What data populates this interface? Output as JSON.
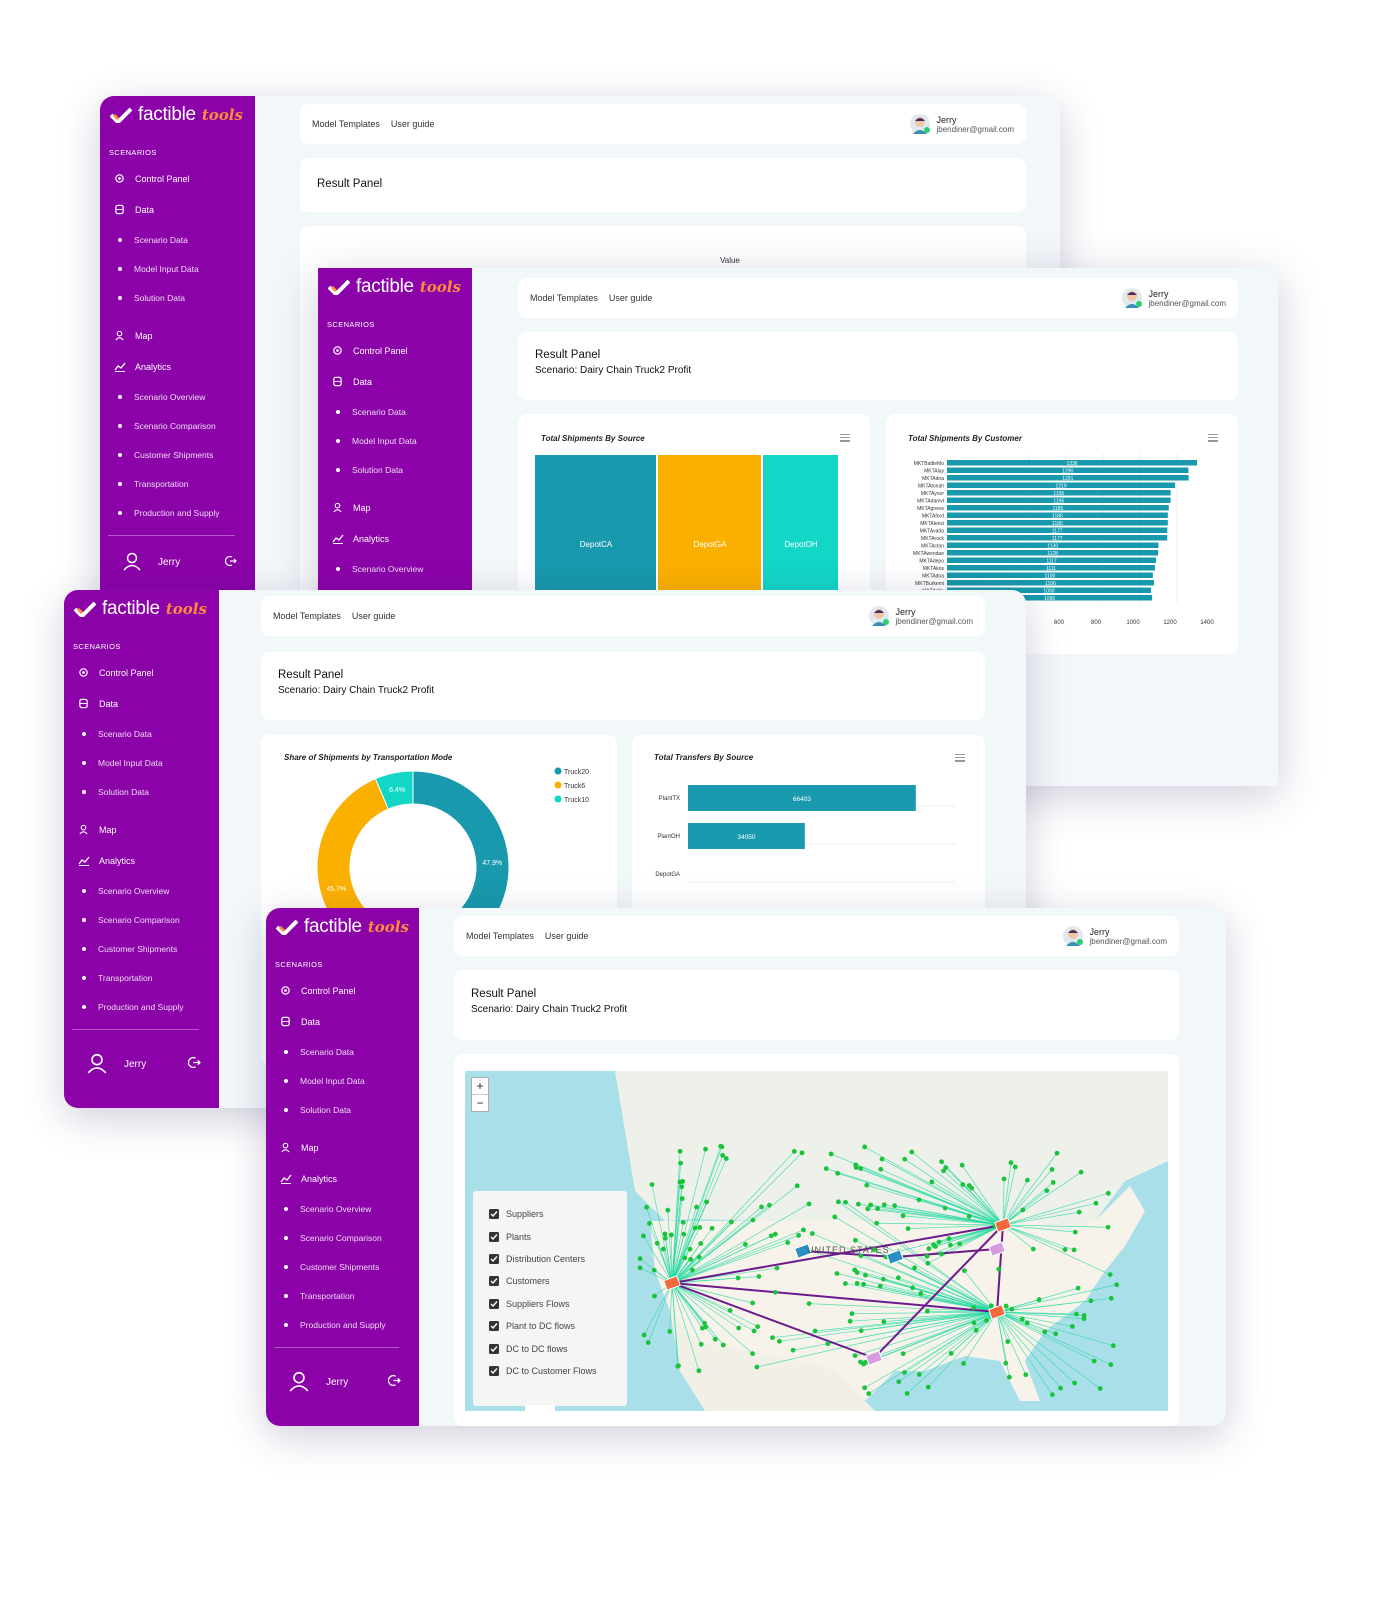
{
  "app": {
    "logo_primary": "factible",
    "logo_secondary": "tools",
    "colors": {
      "sidebar": "#8a02a8",
      "teal": "#1899ad",
      "orange": "#fbb000",
      "cyan": "#12d6c6",
      "accent_orange": "#ff8a3d"
    }
  },
  "sidebar": {
    "section": "SCENARIOS",
    "control_panel": "Control Panel",
    "data": "Data",
    "scenario_data": "Scenario Data",
    "model_input_data": "Model Input Data",
    "solution_data": "Solution Data",
    "map": "Map",
    "analytics": "Analytics",
    "scenario_overview": "Scenario Overview",
    "scenario_comparison": "Scenario Comparison",
    "customer_shipments": "Customer Shipments",
    "transportation": "Transportation",
    "production_and_supply": "Production and Supply",
    "user": "Jerry",
    "icons": {
      "control_panel": "gear-icon",
      "data": "database-icon",
      "map": "person-icon",
      "analytics": "chart-icon",
      "user": "user-icon",
      "logout": "logout-icon"
    }
  },
  "header": {
    "model_templates": "Model Templates",
    "user_guide": "User guide",
    "user_name": "Jerry",
    "user_email": "jbendiner@gmail.com"
  },
  "result": {
    "title": "Result Panel",
    "scenario": "Scenario: Dairy Chain Truck2 Profit"
  },
  "window1": {
    "value_label": "Value"
  },
  "chart_data": [
    {
      "type": "bar",
      "title": "Total Shipments By Source",
      "categories": [
        "DepotCA",
        "DepotGA",
        "DepotOH"
      ],
      "series": [
        {
          "values": [
            1,
            1,
            1
          ]
        }
      ]
    },
    {
      "type": "bar",
      "orientation": "horizontal",
      "title": "Total Shipments By Customer",
      "categories": [
        "MKTBattleMo",
        "MKTAlay",
        "MKTAdna",
        "MKTAtonah",
        "MKTAynor",
        "MKTAdamvl",
        "MKTAgness",
        "MKTAford",
        "MKTAlensi",
        "MKTAvada",
        "MKTArock",
        "MKTActon",
        "MKTAwendae",
        "MKTAdepo",
        "MKTAkos",
        "MKTAdoa",
        "MKTBurkemi",
        "MKTAddy",
        "MKTCarmer"
      ],
      "series": [
        {
          "values": [
            1336,
            1290,
            1291,
            1219,
            1195,
            1195,
            1185,
            1180,
            1180,
            1177,
            1177,
            1130,
            1128,
            1117,
            1111,
            1100,
            1106,
            1090,
            1096
          ]
        }
      ],
      "xticks": [
        "600",
        "800",
        "1000",
        "1200",
        "1400"
      ],
      "xlim": [
        0,
        1400
      ]
    },
    {
      "type": "pie",
      "title": "Share of Shipments by Transportation Mode",
      "labels": [
        "Truck20",
        "Truck6",
        "Truck10"
      ],
      "values": [
        47.9,
        45.7,
        6.4
      ],
      "value_labels": [
        "47.9%",
        "45.7%",
        "6.4%"
      ],
      "legend": "top-right"
    },
    {
      "type": "bar",
      "orientation": "horizontal",
      "title": "Total Transfers By Source",
      "categories": [
        "PlantTX",
        "PlantOH",
        "DepotGA"
      ],
      "series": [
        {
          "values": [
            66403,
            34050,
            0
          ]
        }
      ],
      "value_labels": [
        "66403",
        "34050",
        ""
      ],
      "xlim": [
        0,
        100000
      ]
    }
  ],
  "map": {
    "zoom_in": "+",
    "zoom_out": "−",
    "country_label": "UNITED STATES",
    "layers": [
      {
        "label": "Suppliers",
        "checked": true
      },
      {
        "label": "Plants",
        "checked": true
      },
      {
        "label": "Distribution Centers",
        "checked": true
      },
      {
        "label": "Customers",
        "checked": true
      },
      {
        "label": "Suppliers Flows",
        "checked": true
      },
      {
        "label": "Plant to DC flows",
        "checked": true
      },
      {
        "label": "DC to DC flows",
        "checked": true
      },
      {
        "label": "DC to Customer Flows",
        "checked": true
      }
    ]
  }
}
